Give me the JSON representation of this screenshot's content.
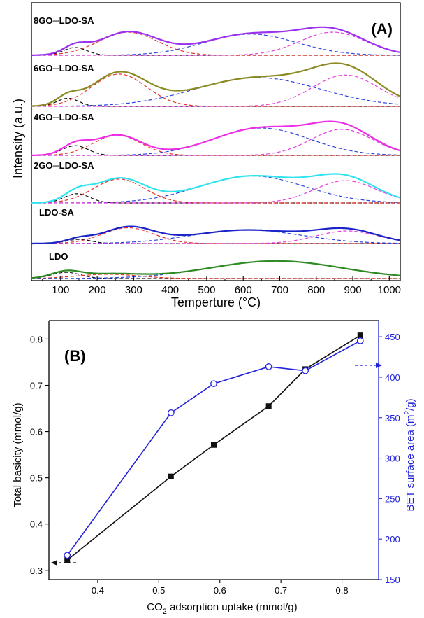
{
  "chart_data": [
    {
      "type": "line",
      "panel_label": "(A)",
      "xlabel": "Temperture (°C)",
      "ylabel": "Intensity (a.u.)",
      "xlim": [
        20,
        1030
      ],
      "xticks": [
        100,
        200,
        300,
        400,
        500,
        600,
        700,
        800,
        900,
        1000
      ],
      "ytick_labels": "none",
      "profile_colors": {
        "8GO-LDO-SA": "#9b30ef",
        "6GO-LDO-SA": "#8b8b23",
        "4GO-LDO-SA": "#ee2ee6",
        "2GO-LDO-SA": "#2fe3ef",
        "LDO-SA": "#1a23c8",
        "LDO": "#2e8b24"
      },
      "deconvolution_colors": [
        "#111111",
        "#e8312a",
        "#2d44e0",
        "#e83ee0"
      ],
      "series": [
        {
          "name": "8GO─LDO-SA",
          "baseline": 0.0,
          "peaks": [
            {
              "center": 140,
              "height": 0.2,
              "width": 32
            },
            {
              "center": 285,
              "height": 0.6,
              "width": 80
            },
            {
              "center": 620,
              "height": 0.55,
              "width": 125
            },
            {
              "center": 845,
              "height": 0.6,
              "width": 90
            }
          ]
        },
        {
          "name": "6GO─LDO-SA",
          "baseline": 0.0,
          "peaks": [
            {
              "center": 120,
              "height": 0.18,
              "width": 30
            },
            {
              "center": 260,
              "height": 0.72,
              "width": 75
            },
            {
              "center": 640,
              "height": 0.64,
              "width": 170
            },
            {
              "center": 880,
              "height": 0.7,
              "width": 90
            }
          ]
        },
        {
          "name": "4GO─LDO-SA",
          "baseline": 0.0,
          "peaks": [
            {
              "center": 140,
              "height": 0.23,
              "width": 35
            },
            {
              "center": 255,
              "height": 0.48,
              "width": 65
            },
            {
              "center": 650,
              "height": 0.65,
              "width": 130
            },
            {
              "center": 870,
              "height": 0.62,
              "width": 85
            }
          ]
        },
        {
          "name": "2GO─LDO-SA",
          "baseline": 0.0,
          "peaks": [
            {
              "center": 145,
              "height": 0.24,
              "width": 35
            },
            {
              "center": 260,
              "height": 0.62,
              "width": 70
            },
            {
              "center": 625,
              "height": 0.7,
              "width": 145
            },
            {
              "center": 880,
              "height": 0.58,
              "width": 85
            }
          ]
        },
        {
          "name": "LDO-SA",
          "baseline": 0.0,
          "peaks": [
            {
              "center": 150,
              "height": 0.13,
              "width": 35
            },
            {
              "center": 285,
              "height": 0.5,
              "width": 70
            },
            {
              "center": 610,
              "height": 0.43,
              "width": 150
            },
            {
              "center": 885,
              "height": 0.4,
              "width": 85
            }
          ]
        },
        {
          "name": "LDO",
          "baseline": 0.0,
          "peaks": [
            {
              "center": 115,
              "height": 0.26,
              "width": 40
            },
            {
              "center": 230,
              "height": 0.18,
              "width": 85
            },
            {
              "center": 690,
              "height": 0.74,
              "width": 180
            }
          ]
        }
      ]
    },
    {
      "type": "scatter",
      "panel_label": "(B)",
      "xlabel": "CO",
      "xlabel_sub": "2",
      "xlabel_rest": " adsorption uptake (mmol/g)",
      "ylabel": "Total  basicity (mmol/g)",
      "y2label": "BET surface area (m",
      "y2label_sup": "2",
      "y2label_rest": "/g)",
      "xlim": [
        0.32,
        0.86
      ],
      "xticks": [
        "0.4",
        "0.5",
        "0.6",
        "0.7",
        "0.8"
      ],
      "ylim": [
        0.28,
        0.84
      ],
      "yticks": [
        "0.3",
        "0.4",
        "0.5",
        "0.6",
        "0.7",
        "0.8"
      ],
      "y2lim": [
        150,
        470
      ],
      "y2ticks": [
        "150",
        "200",
        "250",
        "300",
        "350",
        "400",
        "450"
      ],
      "series": [
        {
          "name": "Total basicity",
          "axis": "left",
          "color": "#111111",
          "marker": "filled-square",
          "x": [
            0.35,
            0.52,
            0.59,
            0.68,
            0.74,
            0.83
          ],
          "y": [
            0.322,
            0.503,
            0.571,
            0.655,
            0.735,
            0.808
          ]
        },
        {
          "name": "BET surface area",
          "axis": "right",
          "color": "#2222dd",
          "marker": "open-circle",
          "x": [
            0.35,
            0.52,
            0.59,
            0.68,
            0.74,
            0.83
          ],
          "y": [
            180,
            356,
            392,
            413,
            408,
            445
          ]
        }
      ]
    }
  ]
}
